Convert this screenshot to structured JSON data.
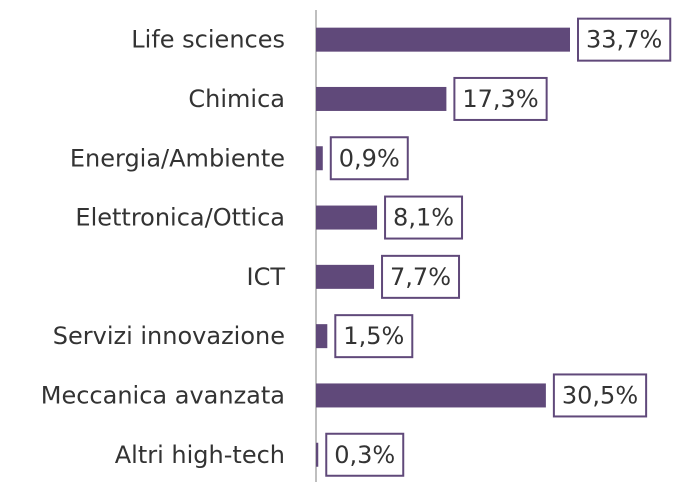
{
  "chart_data": {
    "type": "bar",
    "orientation": "horizontal",
    "categories": [
      "Life sciences",
      "Chimica",
      "Energia/Ambiente",
      "Elettronica/Ottica",
      "ICT",
      "Servizi innovazione",
      "Meccanica avanzata",
      "Altri high-tech"
    ],
    "values": [
      33.7,
      17.3,
      0.9,
      8.1,
      7.7,
      1.5,
      30.5,
      0.3
    ],
    "value_labels": [
      "33,7%",
      "17,3%",
      "0,9%",
      "8,1%",
      "7,7%",
      "1,5%",
      "30,5%",
      "0,3%"
    ],
    "color": "#60497a"
  }
}
